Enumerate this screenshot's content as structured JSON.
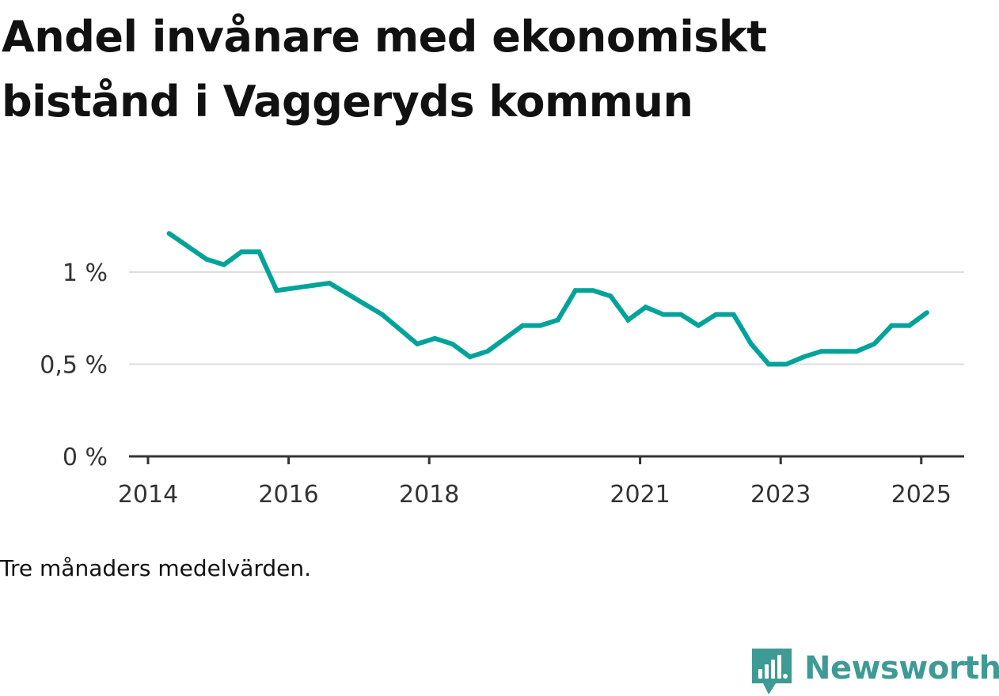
{
  "title": "Andel invånare med ekonomiskt bistånd i Vaggeryds kommun",
  "note": "Tre månaders medelvärden.",
  "brand": {
    "name": "Newsworthy",
    "color": "#3f9a95",
    "icon": "bar-chart-speech-bubble-icon"
  },
  "colors": {
    "line": "#00a39a",
    "grid": "#dddddd",
    "axis": "#333333"
  },
  "chart_data": {
    "type": "line",
    "title": "Andel invånare med ekonomiskt bistånd i Vaggeryds kommun",
    "xlabel": "",
    "ylabel": "",
    "x_range": [
      2014,
      2025.33
    ],
    "ylim": [
      0,
      1.3
    ],
    "y_ticks": [
      {
        "value": 0,
        "label": "0 %"
      },
      {
        "value": 0.5,
        "label": "0,5 %"
      },
      {
        "value": 1,
        "label": "1 %"
      }
    ],
    "x_ticks": [
      {
        "value": 2014,
        "label": "2014"
      },
      {
        "value": 2016,
        "label": "2016"
      },
      {
        "value": 2018,
        "label": "2018"
      },
      {
        "value": 2021,
        "label": "2021"
      },
      {
        "value": 2023,
        "label": "2023"
      },
      {
        "value": 2025,
        "label": "2025"
      }
    ],
    "grid": "horizontal",
    "series": [
      {
        "name": "",
        "x": [
          2014.3,
          2014.83,
          2015.08,
          2015.33,
          2015.58,
          2015.83,
          2016.58,
          2017.33,
          2017.83,
          2018.08,
          2018.33,
          2018.58,
          2018.83,
          2019.08,
          2019.33,
          2019.58,
          2019.83,
          2020.08,
          2020.33,
          2020.58,
          2020.83,
          2021.08,
          2021.33,
          2021.58,
          2021.83,
          2022.08,
          2022.33,
          2022.58,
          2022.83,
          2023.08,
          2023.33,
          2023.58,
          2023.83,
          2024.08,
          2024.33,
          2024.58,
          2024.83,
          2025.08
        ],
        "y": [
          1.21,
          1.07,
          1.04,
          1.11,
          1.11,
          0.9,
          0.94,
          0.77,
          0.61,
          0.64,
          0.61,
          0.54,
          0.57,
          0.64,
          0.71,
          0.71,
          0.74,
          0.9,
          0.9,
          0.87,
          0.74,
          0.81,
          0.77,
          0.77,
          0.71,
          0.77,
          0.77,
          0.61,
          0.5,
          0.5,
          0.54,
          0.57,
          0.57,
          0.57,
          0.61,
          0.71,
          0.71,
          0.78
        ]
      }
    ]
  }
}
